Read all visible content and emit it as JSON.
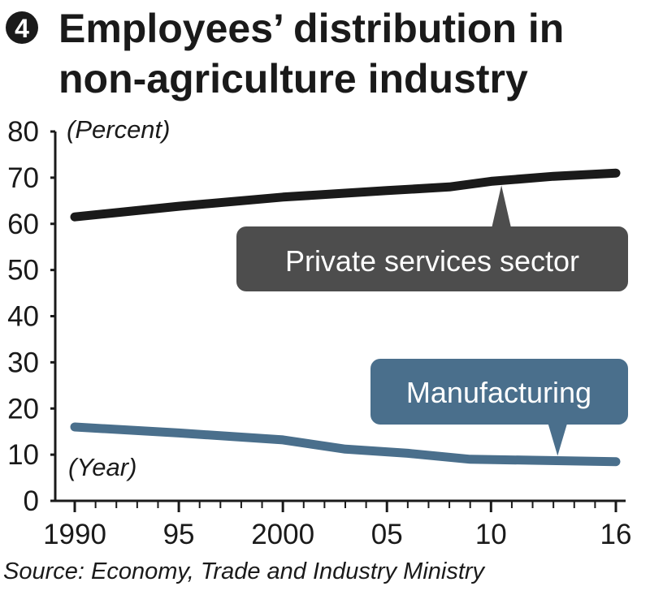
{
  "figure_number": "4",
  "title_line1": "Employees’ distribution in",
  "title_line2": "non-agriculture industry",
  "source": "Source: Economy, Trade and Industry Ministry",
  "chart_data": {
    "type": "line",
    "ylabel": "(Percent)",
    "xlabel": "(Year)",
    "ylim": [
      0,
      80
    ],
    "xlim": [
      1990,
      2016
    ],
    "y_ticks": [
      0,
      10,
      20,
      30,
      40,
      50,
      60,
      70,
      80
    ],
    "x_ticks": [
      {
        "value": 1990,
        "label": "1990"
      },
      {
        "value": 1995,
        "label": "95"
      },
      {
        "value": 2000,
        "label": "2000"
      },
      {
        "value": 2005,
        "label": "05"
      },
      {
        "value": 2010,
        "label": "10"
      },
      {
        "value": 2016,
        "label": "16"
      }
    ],
    "grid": false,
    "series": [
      {
        "name": "Private services sector",
        "color": "#1a1a1a",
        "x": [
          1990,
          1995,
          2000,
          2005,
          2008,
          2010,
          2013,
          2016
        ],
        "y": [
          61.5,
          63.8,
          65.8,
          67.2,
          68.0,
          69.2,
          70.3,
          71.0
        ]
      },
      {
        "name": "Manufacturing",
        "color": "#4a6f8c",
        "x": [
          1990,
          1995,
          2000,
          2003,
          2006,
          2009,
          2012,
          2016
        ],
        "y": [
          16.0,
          14.7,
          13.2,
          11.2,
          10.3,
          9.0,
          8.8,
          8.5
        ]
      }
    ],
    "callouts": [
      {
        "text": "Private services sector",
        "series": 0,
        "fill": "#4d4d4d",
        "pointer_x": 2010.5
      },
      {
        "text": "Manufacturing",
        "series": 1,
        "fill": "#4a6f8c",
        "pointer_x": 2013.2
      }
    ]
  }
}
